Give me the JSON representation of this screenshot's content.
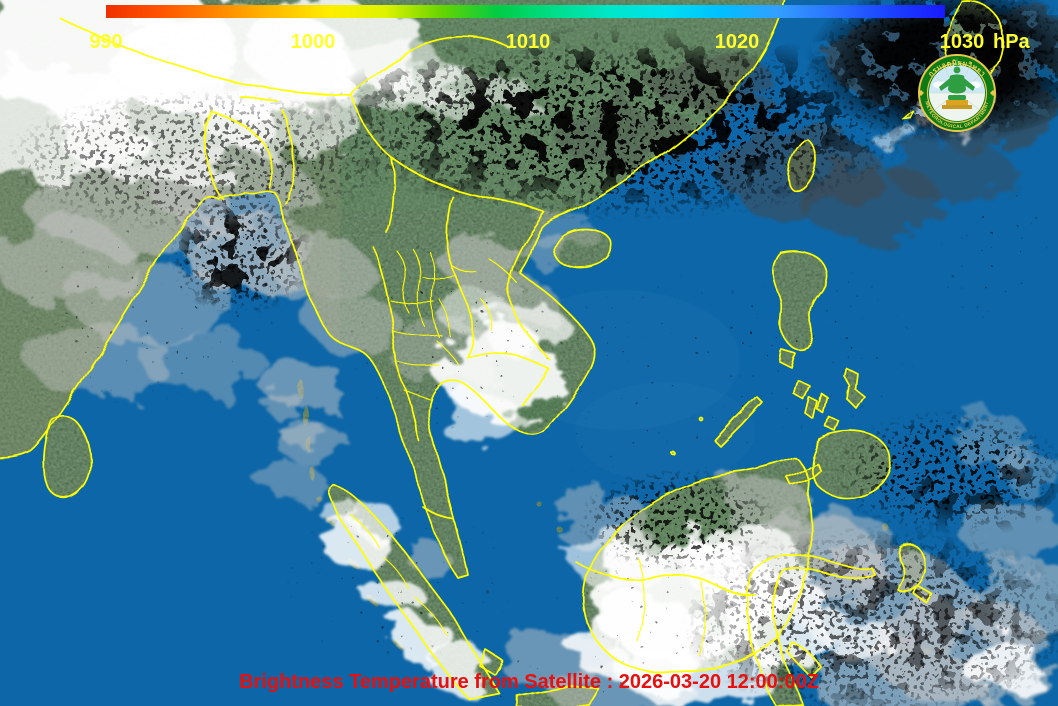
{
  "colorbar": {
    "ticks": [
      "990",
      "1000",
      "1010",
      "1020",
      "1030"
    ],
    "unit": "hPa",
    "tick_color": "#ffff2e",
    "gradient": [
      "#f03000",
      "#ff5500",
      "#ff8800",
      "#ffbb00",
      "#ffee00",
      "#ddf300",
      "#66d400",
      "#00cc44",
      "#00dd88",
      "#00e6c8",
      "#00e0ee",
      "#00bfff",
      "#339fff",
      "#2b72ff",
      "#1b42ff",
      "#1a1aff"
    ]
  },
  "caption": {
    "text": "Brightness Temperature from Satellite : 2026-03-20 12:00:00Z",
    "color": "#e8100e"
  },
  "logo": {
    "thai_text": "กรมอุตุนิยมวิทยา",
    "english_text": "METEOROLOGICAL DEPARTMENT"
  },
  "map": {
    "ocean_color": "#0d66a7",
    "land_color": "#6d8e6c",
    "border_color": "#ffff00"
  }
}
